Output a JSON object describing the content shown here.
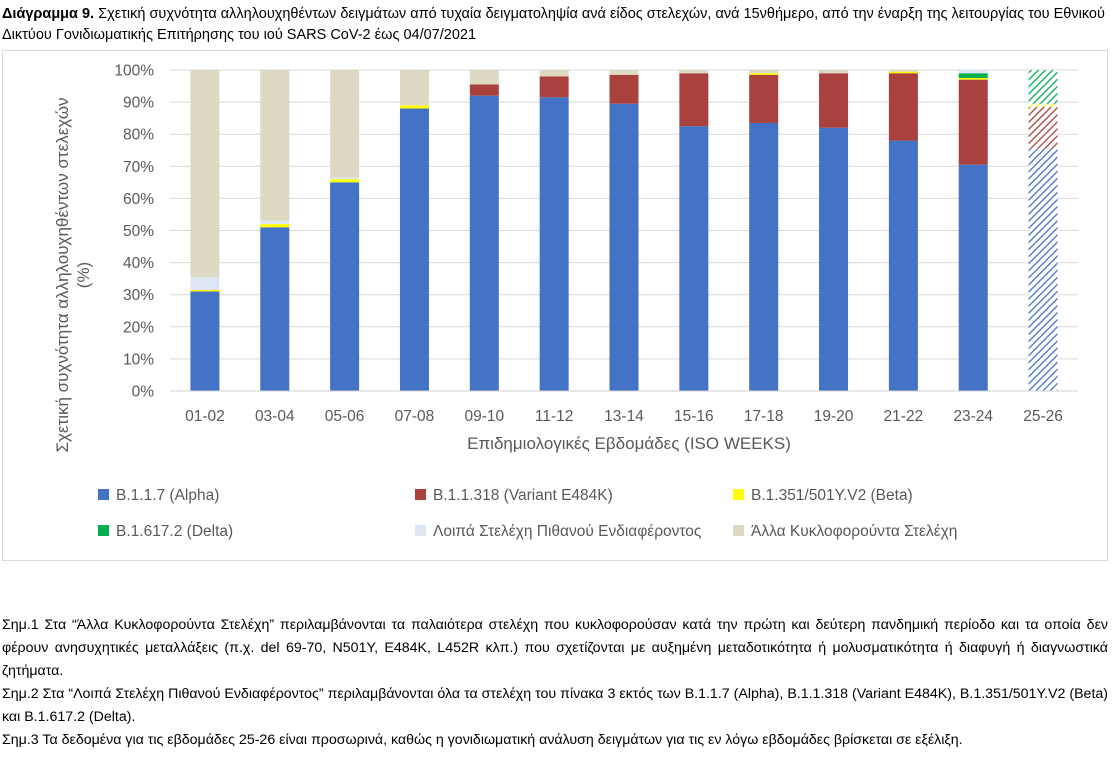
{
  "caption": {
    "label": "Διάγραμμα 9.",
    "text": " Σχετική συχνότητα αλληλουχηθέντων δειγμάτων από τυχαία δειγματοληψία ανά είδος στελεχών, ανά 15νθήμερο, από την έναρξη της λειτουργίας του Εθνικού Δικτύου Γονιδιωματικής Επιτήρησης του ιού SARS CoV-2 έως 04/07/2021"
  },
  "chart_data": {
    "type": "bar",
    "stacked": true,
    "xlabel": "Επιδημιολογικές Εβδομάδες (ISO WEEKS)",
    "ylabel": "Σχετική συχνότητα αλληλουχηθέντων στελεχών (%)",
    "ylim": [
      0,
      100
    ],
    "yticks": [
      "0%",
      "10%",
      "20%",
      "30%",
      "40%",
      "50%",
      "60%",
      "70%",
      "80%",
      "90%",
      "100%"
    ],
    "grid": true,
    "legend_position": "bottom",
    "categories": [
      "01-02",
      "03-04",
      "05-06",
      "07-08",
      "09-10",
      "11-12",
      "13-14",
      "15-16",
      "17-18",
      "19-20",
      "21-22",
      "23-24",
      "25-26"
    ],
    "provisional_categories": [
      "25-26"
    ],
    "series": [
      {
        "name": "B.1.1.7 (Alpha)",
        "color": "#4472c4",
        "values": [
          31,
          51,
          65,
          88,
          92,
          91.5,
          89.5,
          82.5,
          83.5,
          82,
          78,
          70.5,
          75.5
        ]
      },
      {
        "name": "B.1.1.318 (Variant E484K)",
        "color": "#a9413f",
        "values": [
          0,
          0,
          0,
          0,
          3.5,
          6.5,
          9,
          16.5,
          15,
          17,
          21,
          26.5,
          13
        ]
      },
      {
        "name": "B.1.351/501Y.V2 (Beta)",
        "color": "#ffff00",
        "values": [
          0.5,
          1,
          1,
          1,
          0,
          0,
          0,
          0,
          0.5,
          0,
          0.5,
          0.5,
          1
        ]
      },
      {
        "name": "B.1.617.2 (Delta)",
        "color": "#00b050",
        "values": [
          0,
          0,
          0,
          0,
          0,
          0,
          0,
          0,
          0,
          0,
          0,
          1.5,
          10.5
        ]
      },
      {
        "name": "Λοιπά Στελέχη Πιθανού Ενδιαφέροντος",
        "color": "#dde6f2",
        "values": [
          4,
          1,
          0.5,
          0,
          0,
          0,
          0,
          0,
          0,
          0,
          0,
          1,
          0
        ]
      },
      {
        "name": "Άλλα Κυκλοφορούντα Στελέχη",
        "color": "#ddd9c3",
        "values": [
          64.5,
          47,
          33.5,
          11,
          4.5,
          2,
          1.5,
          1,
          1,
          1,
          0.5,
          0,
          0
        ]
      }
    ]
  },
  "notes": [
    "Σημ.1 Στα “Άλλα Κυκλοφορούντα Στελέχη” περιλαμβάνονται τα παλαιότερα στελέχη που κυκλοφορούσαν κατά την πρώτη και δεύτερη πανδημική περίοδο και τα οποία δεν φέρουν ανησυχητικές μεταλλάξεις (π.χ. del 69-70, N501Y, E484K, L452R κλπ.) που σχετίζονται με αυξημένη μεταδοτικότητα ή μολυσματικότητα ή διαφυγή ή διαγνωστικά ζητήματα.",
    "Σημ.2 Στα “Λοιπά Στελέχη Πιθανού Ενδιαφέροντος” περιλαμβάνονται όλα τα στελέχη του πίνακα 3 εκτός των B.1.1.7 (Alpha), B.1.1.318 (Variant E484K), B.1.351/501Y.V2 (Beta) και B.1.617.2 (Delta).",
    "Σημ.3 Τα δεδομένα για τις εβδομάδες 25-26 είναι προσωρινά, καθώς η γονιδιωματική ανάλυση δειγμάτων για τις εν λόγω εβδομάδες βρίσκεται σε εξέλιξη."
  ]
}
